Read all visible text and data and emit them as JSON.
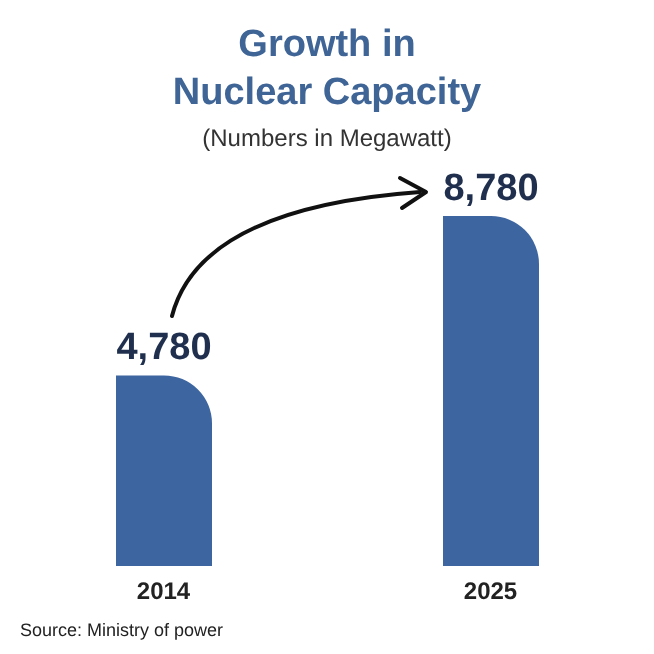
{
  "chart_data": {
    "type": "bar",
    "title": "Growth in",
    "subtitle": "Nuclear Capacity",
    "ylabel": "(Numbers in Megawatt)",
    "categories": [
      "2014",
      "2025"
    ],
    "values": [
      4780,
      8780
    ],
    "value_labels": [
      "4,780",
      "8,780"
    ],
    "color": "#3d65a0",
    "annotations": [
      "Source: Ministry of power"
    ]
  }
}
